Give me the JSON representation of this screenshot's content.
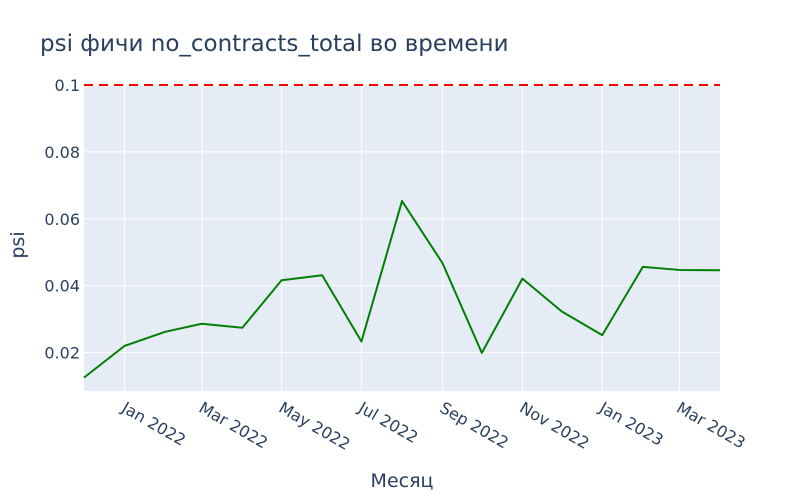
{
  "chart_data": {
    "type": "line",
    "title": "psi фичи no_contracts_total во времени",
    "xlabel": "Месяц",
    "ylabel": "psi",
    "x": [
      "2021-12-01",
      "2022-01-01",
      "2022-02-01",
      "2022-03-01",
      "2022-04-01",
      "2022-05-01",
      "2022-06-01",
      "2022-07-01",
      "2022-08-01",
      "2022-09-01",
      "2022-10-01",
      "2022-11-01",
      "2022-12-01",
      "2023-01-01",
      "2023-02-01",
      "2023-03-01",
      "2023-04-01"
    ],
    "series": [
      {
        "values": [
          0.0125,
          0.022,
          0.0262,
          0.0286,
          0.0274,
          0.0416,
          0.0431,
          0.0233,
          0.0653,
          0.0467,
          0.0199,
          0.0421,
          0.0323,
          0.0252,
          0.0456,
          0.0447,
          0.0446
        ],
        "color": "#008000"
      }
    ],
    "threshold": {
      "value": 0.1,
      "color": "#ff0000",
      "style": "dashed"
    },
    "ylim": [
      0.0085,
      0.1
    ],
    "xlim": [
      "2021-12-01",
      "2023-04-01"
    ],
    "yticks": [
      {
        "value": 0.02,
        "label": "0.02"
      },
      {
        "value": 0.04,
        "label": "0.04"
      },
      {
        "value": 0.06,
        "label": "0.06"
      },
      {
        "value": 0.08,
        "label": "0.08"
      },
      {
        "value": 0.1,
        "label": "0.1"
      }
    ],
    "xticks": [
      {
        "value": "2022-01-01",
        "label": "Jan 2022"
      },
      {
        "value": "2022-03-01",
        "label": "Mar 2022"
      },
      {
        "value": "2022-05-01",
        "label": "May 2022"
      },
      {
        "value": "2022-07-01",
        "label": "Jul 2022"
      },
      {
        "value": "2022-09-01",
        "label": "Sep 2022"
      },
      {
        "value": "2022-11-01",
        "label": "Nov 2022"
      },
      {
        "value": "2023-01-01",
        "label": "Jan 2023"
      },
      {
        "value": "2023-03-01",
        "label": "Mar 2023"
      }
    ],
    "grid": true,
    "legend": "none",
    "colors": {
      "plot_background": "#e5ecf6",
      "grid": "#ffffff",
      "text": "#2a3f5f"
    }
  }
}
